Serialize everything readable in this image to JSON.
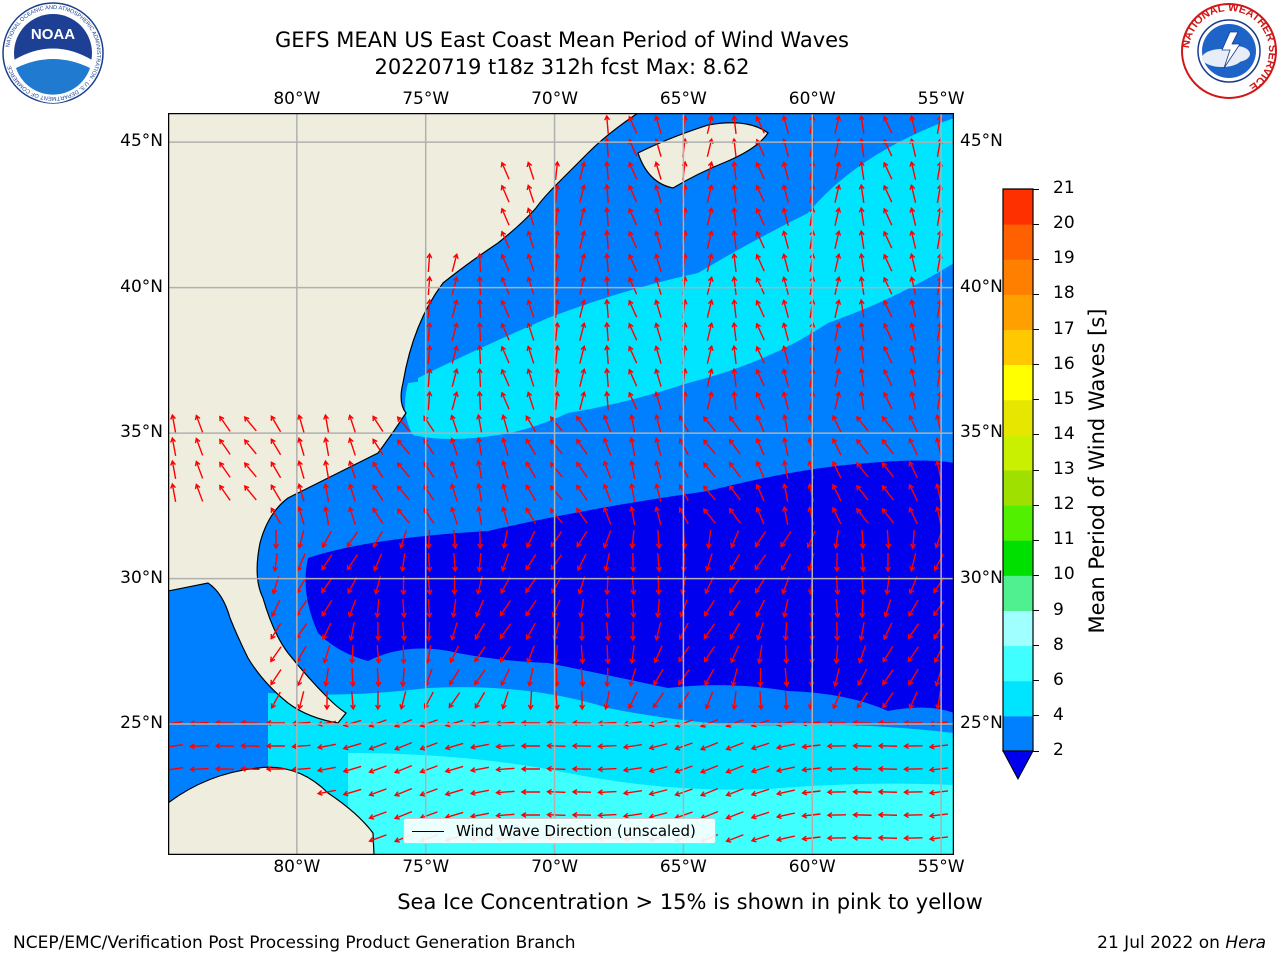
{
  "header": {
    "title": "GEFS MEAN US East Coast Mean Period of Wind Waves",
    "subtitle": "20220719 t18z 312h fcst    Max: 8.62"
  },
  "logos": {
    "left": {
      "name": "NOAA",
      "text": "NOAA",
      "ring_text": "NATIONAL OCEANIC AND ATMOSPHERIC ADMINISTRATION · U.S. DEPARTMENT OF COMMERCE"
    },
    "right": {
      "name": "National Weather Service",
      "ring_text": "NATIONAL WEATHER SERVICE"
    }
  },
  "map": {
    "lon_ticks": [
      "80°W",
      "75°W",
      "70°W",
      "65°W",
      "60°W",
      "55°W"
    ],
    "lat_ticks": [
      "45°N",
      "40°N",
      "35°N",
      "30°N",
      "25°N"
    ],
    "lon_values": [
      -80,
      -75,
      -70,
      -65,
      -60,
      -55
    ],
    "lat_values": [
      45,
      40,
      35,
      30,
      25
    ],
    "lon_range": [
      -85,
      -54.5
    ],
    "lat_range": [
      20.5,
      46
    ],
    "land_color": "#efedde",
    "arrow_color": "#ff0000",
    "grid_color": "#b0b0b0"
  },
  "legend": {
    "label": "Wind Wave Direction (unscaled)"
  },
  "colorbar": {
    "label": "Mean Period of Wind Waves [s]",
    "ticks": [
      "21",
      "20",
      "19",
      "18",
      "17",
      "16",
      "15",
      "14",
      "13",
      "12",
      "11",
      "10",
      "9",
      "8",
      "6",
      "4",
      "2"
    ],
    "levels": [
      2,
      4,
      6,
      8,
      9,
      10,
      11,
      12,
      13,
      14,
      15,
      16,
      17,
      18,
      19,
      20,
      21
    ],
    "colors": [
      "#0080ff",
      "#00e5ff",
      "#40ffff",
      "#a0ffff",
      "#50f090",
      "#00e000",
      "#50f000",
      "#a0e000",
      "#c8f000",
      "#e6e600",
      "#ffff00",
      "#ffc800",
      "#ffa000",
      "#ff8000",
      "#ff6000",
      "#ff3000",
      "#ff0000"
    ],
    "under_color": "#0000ee"
  },
  "note": "Sea Ice Concentration > 15% is shown in pink to yellow",
  "footer": {
    "left": "NCEP/EMC/Verification Post Processing Product Generation Branch",
    "right_date": "21 Jul 2022 on ",
    "right_machine": "Hera"
  }
}
